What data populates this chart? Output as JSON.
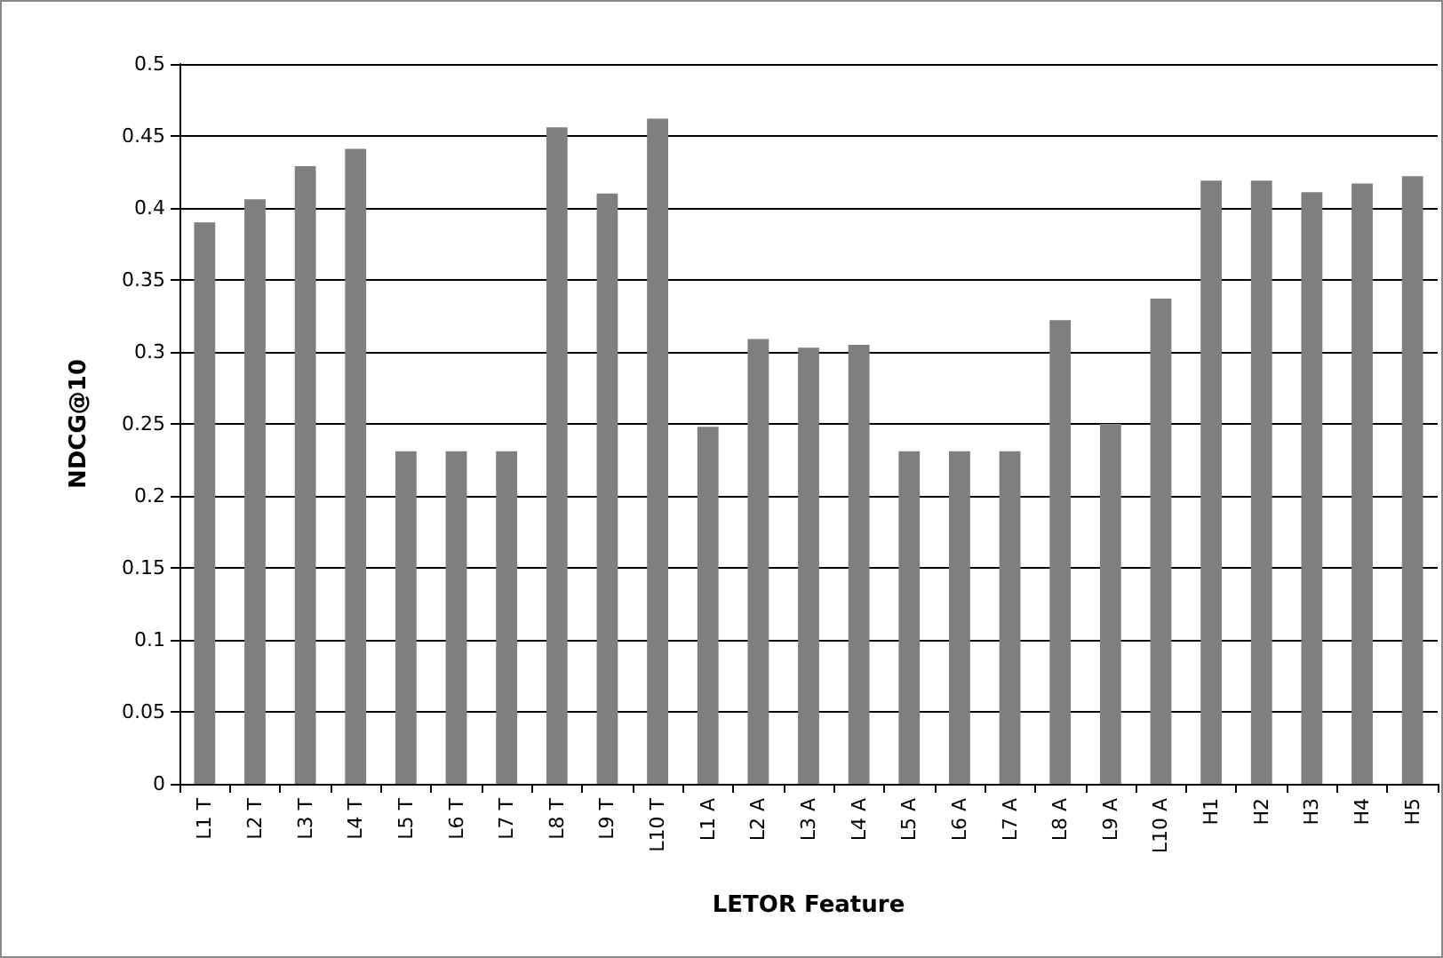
{
  "chart_data": {
    "type": "bar",
    "xlabel": "LETOR Feature",
    "ylabel": "NDCG@10",
    "categories": [
      "L1 T",
      "L2 T",
      "L3 T",
      "L4 T",
      "L5 T",
      "L6 T",
      "L7 T",
      "L8 T",
      "L9 T",
      "L10 T",
      "L1 A",
      "L2 A",
      "L3 A",
      "L4 A",
      "L5 A",
      "L6 A",
      "L7 A",
      "L8 A",
      "L9 A",
      "L10 A",
      "H1",
      "H2",
      "H3",
      "H4",
      "H5"
    ],
    "values": [
      0.39,
      0.406,
      0.429,
      0.441,
      0.231,
      0.231,
      0.231,
      0.456,
      0.41,
      0.462,
      0.248,
      0.309,
      0.303,
      0.305,
      0.231,
      0.231,
      0.231,
      0.322,
      0.25,
      0.337,
      0.419,
      0.419,
      0.411,
      0.417,
      0.422
    ],
    "color": "#7f7f7f",
    "ylim": [
      0,
      0.5
    ],
    "yticks": [
      0,
      0.05,
      0.1,
      0.15,
      0.2,
      0.25,
      0.3,
      0.35,
      0.4,
      0.45,
      0.5
    ],
    "grid": "y"
  }
}
